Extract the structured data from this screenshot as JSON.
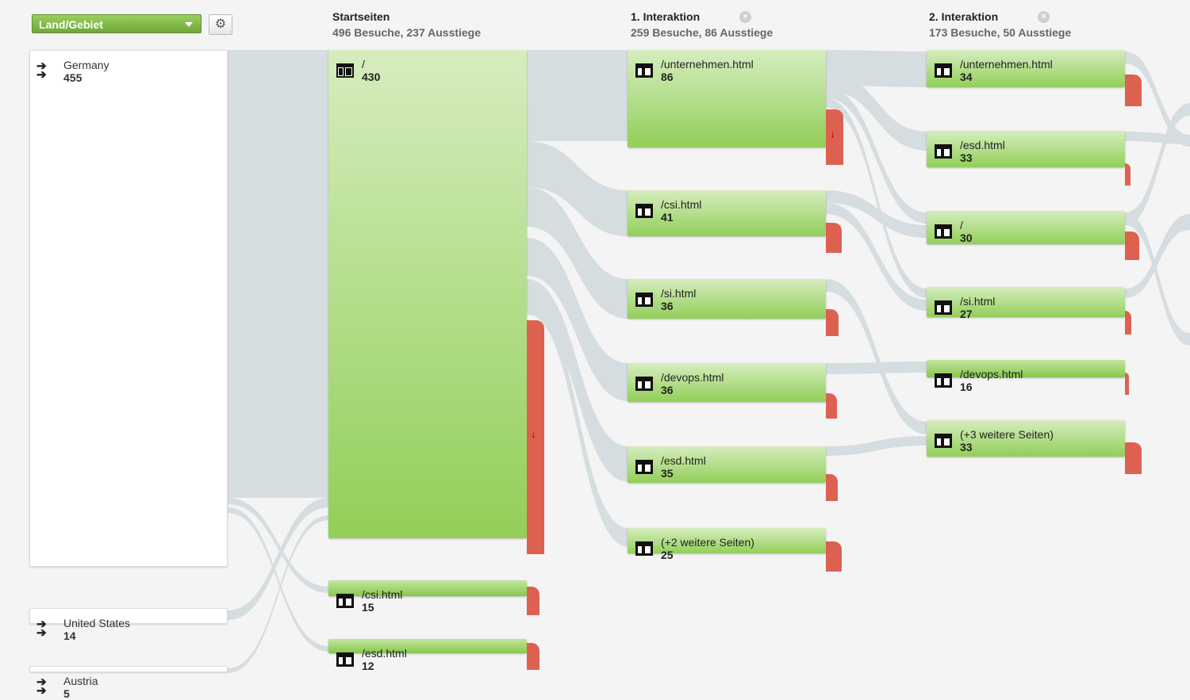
{
  "controls": {
    "dimension_label": "Land/Gebiet",
    "gear_icon": "gear-icon",
    "accent_color": "#7fb843",
    "exit_color": "#dd6150"
  },
  "columns": [
    {
      "title": "Startseiten",
      "summary": "496 Besuche, 237 Ausstiege",
      "closable": false
    },
    {
      "title": "1. Interaktion",
      "summary": "259 Besuche, 86 Ausstiege",
      "closable": true
    },
    {
      "title": "2. Interaktion",
      "summary": "173 Besuche, 50 Ausstiege",
      "closable": true
    }
  ],
  "close_symbol": "×",
  "countries": [
    {
      "name": "Germany",
      "value": "455"
    },
    {
      "name": "United States",
      "value": "14"
    },
    {
      "name": "Austria",
      "value": "5"
    }
  ],
  "start_pages": [
    {
      "page": "/",
      "value": "430"
    },
    {
      "page": "/csi.html",
      "value": "15"
    },
    {
      "page": "/esd.html",
      "value": "12"
    }
  ],
  "interaction1": [
    {
      "page": "/unternehmen.html",
      "value": "86"
    },
    {
      "page": "/csi.html",
      "value": "41"
    },
    {
      "page": "/si.html",
      "value": "36"
    },
    {
      "page": "/devops.html",
      "value": "36"
    },
    {
      "page": "/esd.html",
      "value": "35"
    },
    {
      "page": "(+2 weitere Seiten)",
      "value": "25"
    }
  ],
  "interaction2": [
    {
      "page": "/unternehmen.html",
      "value": "34"
    },
    {
      "page": "/esd.html",
      "value": "33"
    },
    {
      "page": "/",
      "value": "30"
    },
    {
      "page": "/si.html",
      "value": "27"
    },
    {
      "page": "/devops.html",
      "value": "16"
    },
    {
      "page": "(+3 weitere Seiten)",
      "value": "33"
    }
  ],
  "exit_arrow_symbol": "↓"
}
